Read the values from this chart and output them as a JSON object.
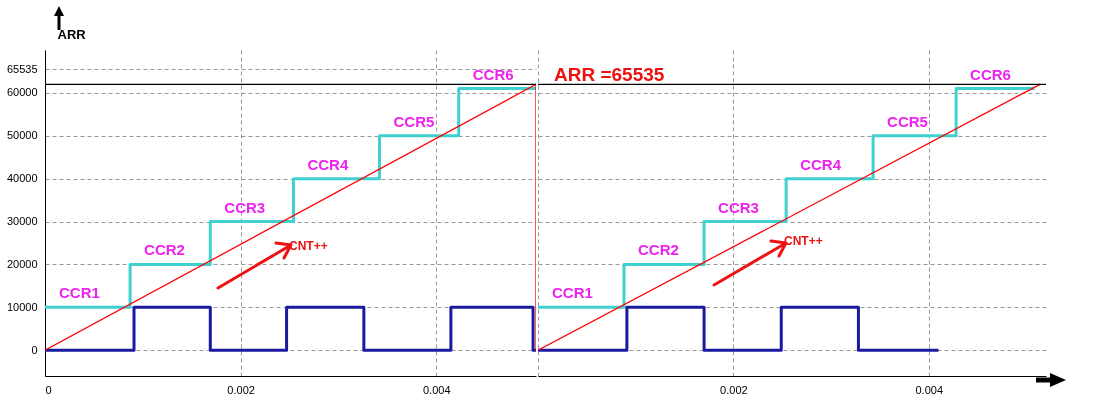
{
  "chart_data": [
    {
      "type": "line",
      "ylabel": "ARR",
      "xlim": [
        0,
        0.00502
      ],
      "xticks": [
        0,
        0.002,
        0.004
      ],
      "ylim": [
        -6000,
        70000
      ],
      "yticks": [
        0,
        10000,
        20000,
        30000,
        40000,
        50000,
        60000,
        65535
      ],
      "grid": true,
      "series": [
        {
          "type": "step",
          "color": "#40d0d0",
          "x": [
            0,
            0.00087,
            0.00169,
            0.00254,
            0.00342,
            0.00423,
            0.00502
          ],
          "values": [
            10000,
            20000,
            30000,
            40000,
            50000,
            61000,
            61000
          ]
        },
        {
          "type": "step",
          "color": "#1a1aa0",
          "x": [
            0,
            0.00091,
            0.00169,
            0.00247,
            0.00326,
            0.00415,
            0.00499,
            0.00502
          ],
          "values": [
            0,
            10000,
            0,
            10000,
            0,
            10000,
            0,
            0
          ]
        },
        {
          "type": "line",
          "color": "#ff0000",
          "x": [
            0,
            0.00502,
            0.00502
          ],
          "values": [
            0,
            62000,
            0
          ]
        }
      ],
      "ref_lines": [
        {
          "axis": "y",
          "value": 62000,
          "color": "#000000"
        }
      ],
      "annotations": [
        {
          "text": "CCR1",
          "x": 0,
          "y": 10000
        },
        {
          "text": "CCR2",
          "x": 0.00087,
          "y": 20000
        },
        {
          "text": "CCR3",
          "x": 0.00169,
          "y": 30000
        },
        {
          "text": "CCR4",
          "x": 0.00254,
          "y": 40000
        },
        {
          "text": "CCR5",
          "x": 0.00342,
          "y": 50000
        },
        {
          "text": "CCR6",
          "x": 0.00423,
          "y": 61000
        },
        "CNT++"
      ]
    },
    {
      "type": "line",
      "xlim": [
        0,
        0.0052
      ],
      "xticks": [
        {
          "value": 0,
          "label": null
        },
        0.002,
        0.004
      ],
      "ylim": [
        -6000,
        70000
      ],
      "yticks": [
        0,
        10000,
        20000,
        30000,
        40000,
        50000,
        60000
      ],
      "grid": true,
      "tick_labels": "x",
      "series": [
        {
          "type": "step",
          "color": "#40d0d0",
          "x": [
            0,
            0.00088,
            0.0017,
            0.00254,
            0.00343,
            0.00428,
            0.00508
          ],
          "values": [
            10000,
            20000,
            30000,
            40000,
            50000,
            61000,
            61000
          ]
        },
        {
          "type": "step",
          "color": "#1a1aa0",
          "x": [
            0,
            0.00091,
            0.0017,
            0.00249,
            0.00328,
            0.0041
          ],
          "values": [
            0,
            10000,
            0,
            10000,
            0,
            0
          ]
        },
        {
          "type": "line",
          "color": "#ff0000",
          "x": [
            0,
            0.00514
          ],
          "values": [
            0,
            62000
          ]
        }
      ],
      "ref_lines": [
        {
          "axis": "y",
          "value": 62000,
          "color": "#000000"
        }
      ],
      "annotations": [
        {
          "text": "CCR1",
          "x": 0,
          "y": 10000
        },
        {
          "text": "CCR2",
          "x": 0.00088,
          "y": 20000
        },
        {
          "text": "CCR3",
          "x": 0.0017,
          "y": 30000
        },
        {
          "text": "CCR4",
          "x": 0.00254,
          "y": 40000
        },
        {
          "text": "CCR5",
          "x": 0.00343,
          "y": 50000
        },
        {
          "text": "CCR6",
          "x": 0.00428,
          "y": 61000
        },
        "CNT++",
        "ARR =65535"
      ]
    }
  ]
}
